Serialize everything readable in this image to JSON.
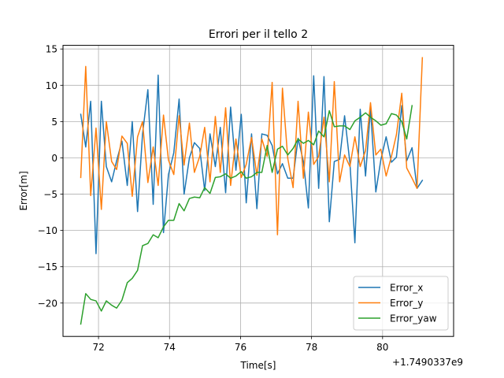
{
  "chart_data": {
    "type": "line",
    "title": "Errori per il tello 2",
    "xlabel": "Time[s]",
    "ylabel": "Error[m]",
    "x_offset_label": "+1.7490337e9",
    "x_ticks": [
      72,
      74,
      76,
      78,
      80
    ],
    "y_ticks": [
      -20,
      -15,
      -10,
      -5,
      0,
      5,
      10,
      15
    ],
    "xlim": [
      71.0,
      82.0
    ],
    "ylim": [
      -24.6,
      15.5
    ],
    "grid": true,
    "legend_position": "lower-right",
    "series": [
      {
        "name": "Error_x",
        "color": "#1f77b4",
        "points": [
          [
            71.5,
            6
          ],
          [
            71.64,
            1.5
          ],
          [
            71.78,
            7.8
          ],
          [
            71.93,
            -13.2
          ],
          [
            72.08,
            7.8
          ],
          [
            72.22,
            -1.2
          ],
          [
            72.37,
            -3.3
          ],
          [
            72.51,
            -0.4
          ],
          [
            72.66,
            2.3
          ],
          [
            72.81,
            -3.8
          ],
          [
            72.95,
            5
          ],
          [
            73.1,
            -7.4
          ],
          [
            73.24,
            3.3
          ],
          [
            73.39,
            9.4
          ],
          [
            73.54,
            -6.4
          ],
          [
            73.68,
            11.4
          ],
          [
            73.83,
            -10.3
          ],
          [
            73.97,
            -2.3
          ],
          [
            74.12,
            0.7
          ],
          [
            74.27,
            8.1
          ],
          [
            74.41,
            -5
          ],
          [
            74.56,
            0
          ],
          [
            74.7,
            2.1
          ],
          [
            74.85,
            1.3
          ],
          [
            74.99,
            -4.5
          ],
          [
            75.14,
            3.3
          ],
          [
            75.29,
            -1.2
          ],
          [
            75.43,
            4.2
          ],
          [
            75.58,
            -4.8
          ],
          [
            75.72,
            7
          ],
          [
            75.87,
            -1.7
          ],
          [
            76.02,
            6
          ],
          [
            76.16,
            -6.2
          ],
          [
            76.31,
            3.3
          ],
          [
            76.46,
            -7
          ],
          [
            76.6,
            3.3
          ],
          [
            76.75,
            3.1
          ],
          [
            76.89,
            1.7
          ],
          [
            77.04,
            -2.2
          ],
          [
            77.18,
            -0.8
          ],
          [
            77.33,
            -2.8
          ],
          [
            77.48,
            -2.8
          ],
          [
            77.62,
            2.7
          ],
          [
            77.77,
            -0.5
          ],
          [
            77.91,
            -6.9
          ],
          [
            78.06,
            11.3
          ],
          [
            78.2,
            -4.2
          ],
          [
            78.35,
            11.2
          ],
          [
            78.5,
            -8.8
          ],
          [
            78.64,
            -0.5
          ],
          [
            78.79,
            -0.2
          ],
          [
            78.93,
            5.8
          ],
          [
            79.08,
            -0.7
          ],
          [
            79.22,
            -11.7
          ],
          [
            79.37,
            6.7
          ],
          [
            79.52,
            -2.5
          ],
          [
            79.66,
            6.8
          ],
          [
            79.81,
            -4.7
          ],
          [
            79.95,
            -0.3
          ],
          [
            80.1,
            2.9
          ],
          [
            80.25,
            -0.6
          ],
          [
            80.39,
            0.1
          ],
          [
            80.54,
            7.2
          ],
          [
            80.68,
            -0.4
          ],
          [
            80.83,
            1.4
          ],
          [
            80.97,
            -4.2
          ],
          [
            81.12,
            -3.1
          ]
        ]
      },
      {
        "name": "Error_y",
        "color": "#ff7f0e",
        "points": [
          [
            71.5,
            -2.7
          ],
          [
            71.64,
            12.6
          ],
          [
            71.78,
            -5.2
          ],
          [
            71.93,
            4.1
          ],
          [
            72.08,
            -7.1
          ],
          [
            72.22,
            5
          ],
          [
            72.37,
            -0.5
          ],
          [
            72.51,
            -1.6
          ],
          [
            72.66,
            3
          ],
          [
            72.81,
            2
          ],
          [
            72.95,
            -5.3
          ],
          [
            73.1,
            2.9
          ],
          [
            73.24,
            5
          ],
          [
            73.39,
            -3.4
          ],
          [
            73.54,
            1.5
          ],
          [
            73.68,
            -3.8
          ],
          [
            73.83,
            5.9
          ],
          [
            73.97,
            -0.3
          ],
          [
            74.12,
            -2.3
          ],
          [
            74.27,
            5.8
          ],
          [
            74.41,
            -1
          ],
          [
            74.56,
            4.8
          ],
          [
            74.7,
            -2
          ],
          [
            74.85,
            0.2
          ],
          [
            74.99,
            4.2
          ],
          [
            75.14,
            -3.3
          ],
          [
            75.29,
            5.7
          ],
          [
            75.43,
            -2
          ],
          [
            75.58,
            6.9
          ],
          [
            75.72,
            -3.8
          ],
          [
            75.87,
            2.6
          ],
          [
            76.02,
            -2.7
          ],
          [
            76.16,
            -0.9
          ],
          [
            76.31,
            2.8
          ],
          [
            76.46,
            -2.4
          ],
          [
            76.6,
            2.6
          ],
          [
            76.75,
            0.2
          ],
          [
            76.89,
            10.4
          ],
          [
            77.04,
            -10.6
          ],
          [
            77.18,
            9.6
          ],
          [
            77.33,
            -0.1
          ],
          [
            77.48,
            -4.1
          ],
          [
            77.62,
            7.8
          ],
          [
            77.77,
            -2.8
          ],
          [
            77.91,
            6.3
          ],
          [
            78.06,
            -0.9
          ],
          [
            78.2,
            0.2
          ],
          [
            78.35,
            5.6
          ],
          [
            78.5,
            -3.3
          ],
          [
            78.64,
            10.5
          ],
          [
            78.79,
            -3.3
          ],
          [
            78.93,
            0.4
          ],
          [
            79.08,
            -1.2
          ],
          [
            79.22,
            2.9
          ],
          [
            79.37,
            -1.2
          ],
          [
            79.52,
            1
          ],
          [
            79.66,
            7.6
          ],
          [
            79.81,
            0.4
          ],
          [
            79.95,
            1.2
          ],
          [
            80.1,
            -2.5
          ],
          [
            80.25,
            0.2
          ],
          [
            80.39,
            3.2
          ],
          [
            80.54,
            8.9
          ],
          [
            80.68,
            -1.4
          ],
          [
            80.83,
            -2.8
          ],
          [
            80.97,
            -4.2
          ],
          [
            81.12,
            13.8
          ]
        ]
      },
      {
        "name": "Error_yaw",
        "color": "#2ca02c",
        "points": [
          [
            71.5,
            -22.9
          ],
          [
            71.64,
            -18.7
          ],
          [
            71.78,
            -19.5
          ],
          [
            71.93,
            -19.7
          ],
          [
            72.08,
            -21.1
          ],
          [
            72.22,
            -19.7
          ],
          [
            72.37,
            -20.3
          ],
          [
            72.51,
            -20.7
          ],
          [
            72.66,
            -19.6
          ],
          [
            72.81,
            -17.2
          ],
          [
            72.95,
            -16.6
          ],
          [
            73.1,
            -15.5
          ],
          [
            73.24,
            -12.1
          ],
          [
            73.39,
            -11.8
          ],
          [
            73.54,
            -10.6
          ],
          [
            73.68,
            -11
          ],
          [
            73.83,
            -9.5
          ],
          [
            73.97,
            -8.6
          ],
          [
            74.12,
            -8.6
          ],
          [
            74.27,
            -6.3
          ],
          [
            74.41,
            -7.3
          ],
          [
            74.56,
            -5.6
          ],
          [
            74.7,
            -5.4
          ],
          [
            74.85,
            -5.5
          ],
          [
            74.99,
            -4.1
          ],
          [
            75.14,
            -4.9
          ],
          [
            75.29,
            -2.7
          ],
          [
            75.43,
            -2.6
          ],
          [
            75.58,
            -2.2
          ],
          [
            75.72,
            -2.8
          ],
          [
            75.87,
            -2.5
          ],
          [
            76.02,
            -1.9
          ],
          [
            76.16,
            -2.8
          ],
          [
            76.31,
            -2.6
          ],
          [
            76.46,
            -2
          ],
          [
            76.6,
            -2
          ],
          [
            76.75,
            1.7
          ],
          [
            76.89,
            -2
          ],
          [
            77.04,
            1.2
          ],
          [
            77.18,
            1.6
          ],
          [
            77.33,
            0.4
          ],
          [
            77.48,
            1.3
          ],
          [
            77.62,
            2.6
          ],
          [
            77.77,
            2
          ],
          [
            77.91,
            2.4
          ],
          [
            78.06,
            1.8
          ],
          [
            78.2,
            3.7
          ],
          [
            78.35,
            2.9
          ],
          [
            78.5,
            6.5
          ],
          [
            78.64,
            4.3
          ],
          [
            78.79,
            4.4
          ],
          [
            78.93,
            4.4
          ],
          [
            79.08,
            3.9
          ],
          [
            79.22,
            5.1
          ],
          [
            79.37,
            5.6
          ],
          [
            79.52,
            6.2
          ],
          [
            79.66,
            5.6
          ],
          [
            79.81,
            5.1
          ],
          [
            79.95,
            4.5
          ],
          [
            80.1,
            4.7
          ],
          [
            80.25,
            6.1
          ],
          [
            80.39,
            5.9
          ],
          [
            80.54,
            5
          ],
          [
            80.68,
            2.6
          ],
          [
            80.83,
            7.2
          ]
        ]
      }
    ]
  }
}
